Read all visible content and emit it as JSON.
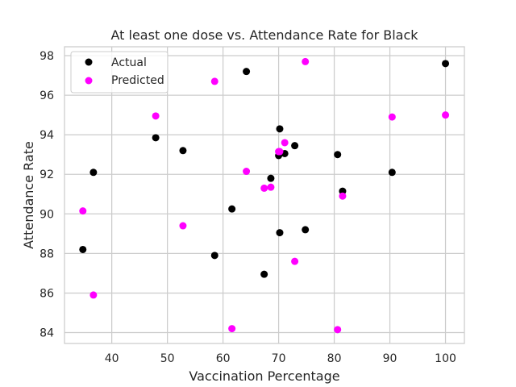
{
  "chart_data": {
    "type": "scatter",
    "title": "At least one dose vs. Attendance Rate for Black",
    "xlabel": "Vaccination Percentage",
    "ylabel": "Attendance Rate",
    "xlim": [
      31.5,
      103.4
    ],
    "ylim": [
      83.45,
      98.45
    ],
    "x_ticks": [
      40,
      50,
      60,
      70,
      80,
      90,
      100
    ],
    "y_ticks": [
      84,
      86,
      88,
      90,
      92,
      94,
      96,
      98
    ],
    "grid": true,
    "legend_position": "top-left",
    "series": [
      {
        "name": "Actual",
        "color": "#000000",
        "points": [
          {
            "x": 34.8,
            "y": 88.2
          },
          {
            "x": 36.7,
            "y": 92.1
          },
          {
            "x": 47.9,
            "y": 93.85
          },
          {
            "x": 52.8,
            "y": 93.2
          },
          {
            "x": 58.5,
            "y": 87.9
          },
          {
            "x": 61.6,
            "y": 90.25
          },
          {
            "x": 64.2,
            "y": 97.2
          },
          {
            "x": 67.4,
            "y": 86.95
          },
          {
            "x": 68.6,
            "y": 91.8
          },
          {
            "x": 70.0,
            "y": 92.95
          },
          {
            "x": 70.2,
            "y": 94.3
          },
          {
            "x": 70.2,
            "y": 89.05
          },
          {
            "x": 71.1,
            "y": 93.05
          },
          {
            "x": 72.9,
            "y": 93.45
          },
          {
            "x": 74.8,
            "y": 89.2
          },
          {
            "x": 80.6,
            "y": 93.0
          },
          {
            "x": 81.5,
            "y": 91.15
          },
          {
            "x": 90.4,
            "y": 92.1
          },
          {
            "x": 100.0,
            "y": 97.6
          }
        ]
      },
      {
        "name": "Predicted",
        "color": "#ff00ff",
        "points": [
          {
            "x": 34.8,
            "y": 90.15
          },
          {
            "x": 36.7,
            "y": 85.9
          },
          {
            "x": 47.9,
            "y": 94.95
          },
          {
            "x": 52.8,
            "y": 89.4
          },
          {
            "x": 58.5,
            "y": 96.7
          },
          {
            "x": 61.6,
            "y": 84.2
          },
          {
            "x": 64.2,
            "y": 92.15
          },
          {
            "x": 67.4,
            "y": 91.3
          },
          {
            "x": 68.6,
            "y": 91.35
          },
          {
            "x": 70.0,
            "y": 93.15
          },
          {
            "x": 70.2,
            "y": 93.15
          },
          {
            "x": 71.1,
            "y": 93.6
          },
          {
            "x": 72.9,
            "y": 87.6
          },
          {
            "x": 74.8,
            "y": 97.7
          },
          {
            "x": 80.6,
            "y": 84.15
          },
          {
            "x": 81.5,
            "y": 90.9
          },
          {
            "x": 90.4,
            "y": 94.9
          },
          {
            "x": 100.0,
            "y": 95.0
          }
        ]
      }
    ]
  }
}
